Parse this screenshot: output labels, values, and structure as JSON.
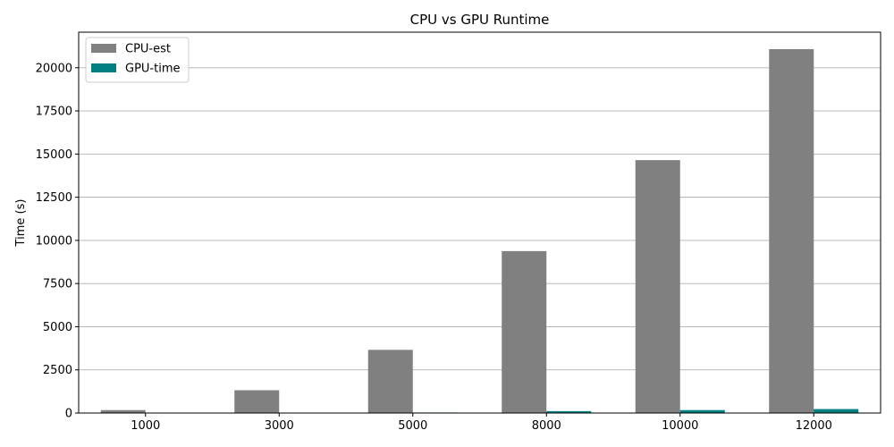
{
  "chart_data": {
    "type": "bar",
    "title": "CPU vs GPU Runtime",
    "xlabel": "",
    "ylabel": "Time (s)",
    "categories": [
      "1000",
      "3000",
      "5000",
      "8000",
      "10000",
      "12000"
    ],
    "series": [
      {
        "name": "CPU-est",
        "values": [
          170,
          1320,
          3660,
          9380,
          14650,
          21080
        ],
        "color": "#808080"
      },
      {
        "name": "GPU-time",
        "values": [
          3,
          12,
          30,
          110,
          170,
          230
        ],
        "color": "#008080"
      }
    ],
    "ylim": [
      0,
      22060
    ],
    "yticks": [
      0,
      2500,
      5000,
      7500,
      10000,
      12500,
      15000,
      17500,
      20000
    ],
    "ytick_labels": [
      "0",
      "2500",
      "5000",
      "7500",
      "10000",
      "12500",
      "15000",
      "17500",
      "20000"
    ],
    "grid": "y",
    "legend_position": "top-left"
  }
}
